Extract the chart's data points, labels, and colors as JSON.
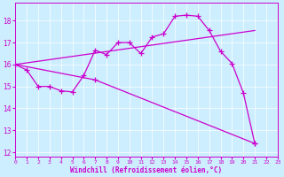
{
  "bg_color": "#cceeff",
  "line_color": "#cc00cc",
  "xlabel": "Windchill (Refroidissement éolien,°C)",
  "xlim": [
    0,
    23
  ],
  "ylim": [
    11.8,
    18.8
  ],
  "yticks": [
    12,
    13,
    14,
    15,
    16,
    17,
    18
  ],
  "xticks": [
    0,
    1,
    2,
    3,
    4,
    5,
    6,
    7,
    8,
    9,
    10,
    11,
    12,
    13,
    14,
    15,
    16,
    17,
    18,
    19,
    20,
    21,
    22,
    23
  ],
  "curve1_x": [
    0,
    1,
    2,
    3,
    4,
    5,
    6,
    7,
    8,
    9,
    10,
    11,
    12,
    13,
    14,
    15,
    16,
    17,
    18,
    19,
    20,
    21
  ],
  "curve1_y": [
    16.0,
    15.75,
    15.0,
    15.0,
    14.8,
    14.75,
    15.5,
    16.65,
    16.45,
    17.0,
    17.0,
    16.5,
    17.25,
    17.4,
    18.2,
    18.25,
    18.2,
    17.55,
    16.6,
    16.05,
    14.7,
    12.4
  ],
  "line2_x": [
    0,
    21
  ],
  "line2_y": [
    16.0,
    17.55
  ],
  "line3_x": [
    0,
    7,
    21
  ],
  "line3_y": [
    16.0,
    15.3,
    12.4
  ]
}
